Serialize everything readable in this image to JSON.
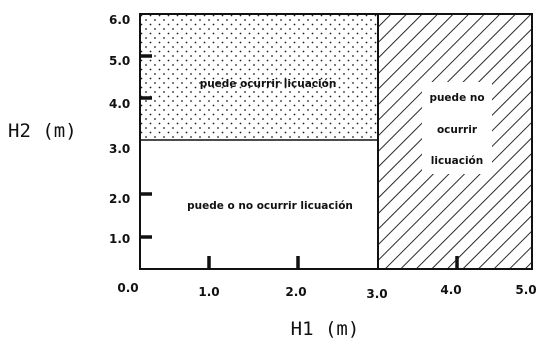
{
  "axes": {
    "x_title": "H1  (m)",
    "y_title": "H2  (m)",
    "x_ticks": [
      "0.0",
      "1.0",
      "2.0",
      "3.0",
      "4.0",
      "5.0"
    ],
    "y_ticks": [
      "1.0",
      "2.0",
      "3.0",
      "4.0",
      "5.0",
      "6.0"
    ],
    "x_range": [
      0,
      5
    ],
    "y_range": [
      0,
      6
    ]
  },
  "regions": {
    "dotted": {
      "label": "puede ocurrir licuación",
      "pattern": "dots"
    },
    "plain": {
      "label": "puede o no ocurrir licuación",
      "pattern": "none"
    },
    "hatched": {
      "label_lines": [
        "puede no",
        "ocurrir",
        "licuación"
      ],
      "pattern": "diagonal-hatch"
    }
  },
  "colors": {
    "ink": "#111111",
    "background": "#ffffff"
  }
}
